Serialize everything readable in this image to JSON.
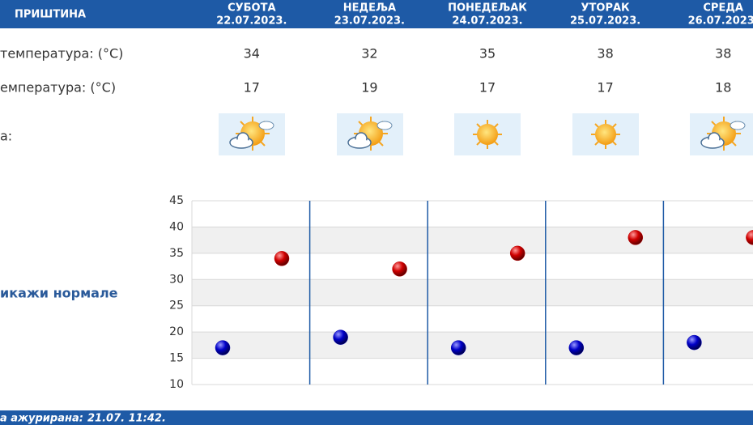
{
  "header": {
    "city": "ПРИШТИНА"
  },
  "table": {
    "days": [
      {
        "name": "СУБОТА",
        "date": "22.07.2023."
      },
      {
        "name": "НЕДЕЉА",
        "date": "23.07.2023."
      },
      {
        "name": "ПОНЕДЕЉАК",
        "date": "24.07.2023."
      },
      {
        "name": "УТОРАК",
        "date": "25.07.2023."
      },
      {
        "name": "СРЕДА",
        "date": "26.07.2023."
      }
    ],
    "row_labels": [
      "температура: (°C)",
      "емпература: (°C)",
      "а:"
    ]
  },
  "toggle": "икажи нормале",
  "footer": {
    "label": "а ажурирана:",
    "time": "21.07. 11:42."
  },
  "chart_data": {
    "type": "scatter",
    "series": [
      {
        "color": "#c00000",
        "values": [
          34,
          32,
          35,
          38,
          38
        ]
      },
      {
        "color": "#0000b0",
        "values": [
          17,
          19,
          17,
          17,
          18
        ]
      }
    ],
    "ylim": [
      10,
      45
    ],
    "yticks": [
      10,
      15,
      20,
      25,
      30,
      35,
      40,
      45
    ],
    "grid": true
  }
}
